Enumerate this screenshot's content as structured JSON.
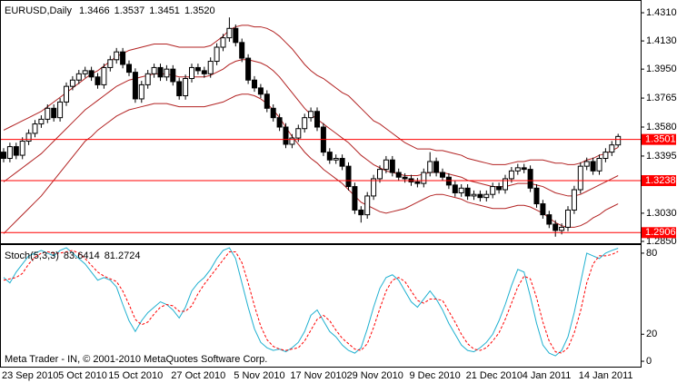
{
  "chart_data": [
    {
      "type": "candlestick",
      "title": "EURUSD,Daily",
      "header_values": [
        "1.3466",
        "1.3537",
        "1.3451",
        "1.3520"
      ],
      "categories": [
        "23 Sep 2010",
        null,
        null,
        null,
        null,
        null,
        null,
        null,
        null,
        "5 Oct 2010",
        null,
        null,
        null,
        null,
        null,
        null,
        null,
        "15 Oct 2010",
        null,
        null,
        null,
        null,
        null,
        null,
        null,
        null,
        null,
        "27 Oct 2010",
        null,
        null,
        null,
        null,
        null,
        null,
        null,
        null,
        null,
        "5 Nov 2010",
        null,
        null,
        null,
        null,
        null,
        null,
        null,
        null,
        "17 Nov 2010",
        null,
        null,
        null,
        null,
        null,
        null,
        null,
        null,
        "29 Nov 2010",
        null,
        null,
        null,
        null,
        null,
        null,
        null,
        null,
        null,
        "9 Dec 2010",
        null,
        null,
        null,
        null,
        null,
        null,
        null,
        null,
        "21 Dec 2010",
        null,
        null,
        null,
        null,
        null,
        null,
        null,
        null,
        "4 Jan 2011",
        null,
        null,
        null,
        null,
        null,
        null,
        null,
        null,
        "14 Jan 2011",
        null,
        null,
        null,
        null,
        null,
        null
      ],
      "open": [
        1.342,
        1.338,
        1.3455,
        1.34,
        1.349,
        1.354,
        1.36,
        1.363,
        1.37,
        1.364,
        1.374,
        1.384,
        1.388,
        1.392,
        1.394,
        1.39,
        1.385,
        1.396,
        1.401,
        1.406,
        1.398,
        1.393,
        1.376,
        1.385,
        1.392,
        1.396,
        1.39,
        1.395,
        1.387,
        1.378,
        1.389,
        1.396,
        1.394,
        1.392,
        1.4,
        1.409,
        1.415,
        1.421,
        1.412,
        1.402,
        1.388,
        1.383,
        1.379,
        1.37,
        1.364,
        1.358,
        1.347,
        1.351,
        1.357,
        1.364,
        1.368,
        1.358,
        1.342,
        1.337,
        1.338,
        1.333,
        1.32,
        1.305,
        1.302,
        1.314,
        1.325,
        1.331,
        1.337,
        1.329,
        1.326,
        1.325,
        1.323,
        1.322,
        1.329,
        1.336,
        1.329,
        1.326,
        1.321,
        1.316,
        1.319,
        1.314,
        1.315,
        1.313,
        1.315,
        1.32,
        1.318,
        1.325,
        1.33,
        1.332,
        1.331,
        1.319,
        1.309,
        1.302,
        1.296,
        1.292,
        1.294,
        1.305,
        1.318,
        1.333,
        1.336,
        1.33,
        1.338,
        1.342,
        1.3466
      ],
      "high": [
        1.3445,
        1.348,
        1.348,
        1.3515,
        1.3565,
        1.3625,
        1.3655,
        1.3725,
        1.3725,
        1.3765,
        1.3865,
        1.3905,
        1.3945,
        1.3965,
        1.3965,
        1.3925,
        1.3985,
        1.4035,
        1.4085,
        1.4085,
        1.4005,
        1.3955,
        1.3875,
        1.3945,
        1.3985,
        1.3985,
        1.3975,
        1.3975,
        1.3895,
        1.3915,
        1.3985,
        1.3985,
        1.3965,
        1.4025,
        1.4115,
        1.4175,
        1.428,
        1.4235,
        1.4145,
        1.4045,
        1.3905,
        1.3855,
        1.3815,
        1.3725,
        1.3665,
        1.3605,
        1.3535,
        1.3595,
        1.3665,
        1.3705,
        1.3705,
        1.3605,
        1.3445,
        1.3405,
        1.3405,
        1.3355,
        1.3225,
        1.3075,
        1.3165,
        1.3275,
        1.3335,
        1.3395,
        1.3395,
        1.3315,
        1.3285,
        1.3275,
        1.3255,
        1.3315,
        1.342,
        1.3385,
        1.3315,
        1.3285,
        1.3235,
        1.3215,
        1.3215,
        1.3175,
        1.3175,
        1.3175,
        1.3225,
        1.3225,
        1.3275,
        1.3325,
        1.3345,
        1.3345,
        1.3335,
        1.3215,
        1.3115,
        1.3045,
        1.2985,
        1.2965,
        1.3075,
        1.3205,
        1.3355,
        1.3385,
        1.3385,
        1.3405,
        1.3445,
        1.3491,
        1.3537
      ],
      "low": [
        1.3355,
        1.3355,
        1.3375,
        1.3375,
        1.3465,
        1.3515,
        1.3575,
        1.3605,
        1.3615,
        1.3615,
        1.3715,
        1.3815,
        1.3855,
        1.3895,
        1.3875,
        1.3825,
        1.3825,
        1.3935,
        1.3985,
        1.3955,
        1.3905,
        1.3735,
        1.3735,
        1.3825,
        1.3895,
        1.3875,
        1.3875,
        1.3845,
        1.3755,
        1.3755,
        1.3865,
        1.3915,
        1.3895,
        1.3895,
        1.3975,
        1.4065,
        1.4125,
        1.4095,
        1.3995,
        1.3855,
        1.3805,
        1.3765,
        1.3675,
        1.3615,
        1.3555,
        1.3445,
        1.3445,
        1.3485,
        1.3545,
        1.3615,
        1.3555,
        1.3395,
        1.3345,
        1.3345,
        1.3305,
        1.3175,
        1.3025,
        1.297,
        1.2995,
        1.3115,
        1.3225,
        1.3285,
        1.3265,
        1.3235,
        1.3225,
        1.3205,
        1.3195,
        1.3195,
        1.3265,
        1.3265,
        1.3235,
        1.3185,
        1.3135,
        1.3135,
        1.3115,
        1.3115,
        1.3105,
        1.3105,
        1.3125,
        1.3155,
        1.3155,
        1.3225,
        1.3275,
        1.3285,
        1.3165,
        1.3065,
        1.2995,
        1.2935,
        1.288,
        1.2895,
        1.2915,
        1.3025,
        1.3155,
        1.3305,
        1.3275,
        1.3275,
        1.3355,
        1.3395,
        1.3451
      ],
      "close": [
        1.338,
        1.3455,
        1.34,
        1.349,
        1.354,
        1.36,
        1.363,
        1.37,
        1.364,
        1.374,
        1.384,
        1.388,
        1.392,
        1.394,
        1.39,
        1.385,
        1.396,
        1.401,
        1.406,
        1.398,
        1.393,
        1.376,
        1.385,
        1.392,
        1.396,
        1.39,
        1.395,
        1.387,
        1.378,
        1.389,
        1.396,
        1.394,
        1.392,
        1.4,
        1.409,
        1.415,
        1.421,
        1.412,
        1.402,
        1.388,
        1.383,
        1.379,
        1.37,
        1.364,
        1.358,
        1.347,
        1.351,
        1.357,
        1.364,
        1.368,
        1.358,
        1.342,
        1.337,
        1.338,
        1.333,
        1.32,
        1.305,
        1.302,
        1.314,
        1.325,
        1.331,
        1.337,
        1.329,
        1.326,
        1.325,
        1.323,
        1.322,
        1.329,
        1.336,
        1.329,
        1.326,
        1.321,
        1.316,
        1.319,
        1.314,
        1.315,
        1.313,
        1.315,
        1.32,
        1.318,
        1.325,
        1.33,
        1.332,
        1.331,
        1.319,
        1.309,
        1.302,
        1.296,
        1.292,
        1.294,
        1.305,
        1.318,
        1.333,
        1.336,
        1.33,
        1.338,
        1.342,
        1.3466,
        1.352
      ],
      "up_color": "#ffffff",
      "down_color": "#000000",
      "candle_stroke": "#000000",
      "bands": [
        {
          "color": "#b22222",
          "values": [
            1.356,
            1.358,
            1.36,
            1.362,
            1.364,
            1.366,
            1.368,
            1.371,
            1.374,
            1.377,
            1.38,
            1.383,
            1.386,
            1.389,
            1.392,
            1.394,
            1.397,
            1.4,
            1.403,
            1.405,
            1.407,
            1.408,
            1.409,
            1.41,
            1.411,
            1.411,
            1.411,
            1.41,
            1.409,
            1.409,
            1.409,
            1.409,
            1.409,
            1.41,
            1.413,
            1.416,
            1.42,
            1.422,
            1.423,
            1.423,
            1.422,
            1.422,
            1.421,
            1.419,
            1.416,
            1.412,
            1.408,
            1.403,
            1.398,
            1.394,
            1.391,
            1.389,
            1.386,
            1.383,
            1.38,
            1.378,
            1.374,
            1.37,
            1.366,
            1.362,
            1.36,
            1.357,
            1.354,
            1.351,
            1.348,
            1.346,
            1.344,
            1.344,
            1.344,
            1.343,
            1.343,
            1.342,
            1.341,
            1.34,
            1.338,
            1.337,
            1.336,
            1.335,
            1.334,
            1.334,
            1.334,
            1.335,
            1.336,
            1.336,
            1.337,
            1.337,
            1.337,
            1.336,
            1.335,
            1.335,
            1.334,
            1.334,
            1.335,
            1.337,
            1.338,
            1.34,
            1.341,
            1.343,
            1.345
          ]
        },
        {
          "color": "#b22222",
          "values": [
            1.323,
            1.326,
            1.329,
            1.332,
            1.335,
            1.338,
            1.341,
            1.345,
            1.349,
            1.353,
            1.357,
            1.361,
            1.365,
            1.369,
            1.372,
            1.375,
            1.378,
            1.381,
            1.384,
            1.386,
            1.388,
            1.389,
            1.39,
            1.391,
            1.392,
            1.392,
            1.392,
            1.391,
            1.39,
            1.39,
            1.39,
            1.39,
            1.39,
            1.391,
            1.393,
            1.395,
            1.398,
            1.4,
            1.401,
            1.401,
            1.4,
            1.399,
            1.397,
            1.394,
            1.39,
            1.385,
            1.38,
            1.375,
            1.37,
            1.366,
            1.363,
            1.36,
            1.357,
            1.354,
            1.351,
            1.348,
            1.344,
            1.34,
            1.337,
            1.334,
            1.332,
            1.33,
            1.329,
            1.328,
            1.327,
            1.327,
            1.327,
            1.328,
            1.329,
            1.329,
            1.329,
            1.328,
            1.327,
            1.326,
            1.324,
            1.323,
            1.322,
            1.321,
            1.32,
            1.32,
            1.32,
            1.321,
            1.322,
            1.322,
            1.322,
            1.321,
            1.32,
            1.318,
            1.316,
            1.315,
            1.314,
            1.314,
            1.315,
            1.317,
            1.319,
            1.321,
            1.323,
            1.325,
            1.327
          ]
        },
        {
          "color": "#b22222",
          "values": [
            1.29,
            1.294,
            1.298,
            1.302,
            1.306,
            1.31,
            1.314,
            1.319,
            1.324,
            1.329,
            1.334,
            1.339,
            1.344,
            1.349,
            1.352,
            1.356,
            1.359,
            1.362,
            1.365,
            1.367,
            1.369,
            1.37,
            1.371,
            1.372,
            1.373,
            1.373,
            1.373,
            1.372,
            1.371,
            1.371,
            1.371,
            1.371,
            1.371,
            1.372,
            1.373,
            1.374,
            1.376,
            1.378,
            1.379,
            1.379,
            1.378,
            1.376,
            1.373,
            1.369,
            1.364,
            1.358,
            1.352,
            1.347,
            1.342,
            1.338,
            1.335,
            1.331,
            1.328,
            1.325,
            1.322,
            1.318,
            1.314,
            1.31,
            1.308,
            1.306,
            1.304,
            1.303,
            1.304,
            1.305,
            1.306,
            1.308,
            1.31,
            1.312,
            1.314,
            1.315,
            1.315,
            1.314,
            1.313,
            1.312,
            1.31,
            1.309,
            1.308,
            1.307,
            1.306,
            1.306,
            1.306,
            1.307,
            1.308,
            1.308,
            1.307,
            1.305,
            1.303,
            1.3,
            1.297,
            1.295,
            1.294,
            1.294,
            1.295,
            1.297,
            1.3,
            1.302,
            1.305,
            1.307,
            1.309
          ]
        }
      ],
      "levels": [
        {
          "value": 1.3501,
          "label": "1.3501"
        },
        {
          "value": 1.3238,
          "label": "1.3238"
        },
        {
          "value": 1.2906,
          "label": "1.2906"
        }
      ],
      "level_color": "#ff0000",
      "ylim": [
        1.2844,
        1.4374
      ],
      "yticks": [
        {
          "value": 1.431,
          "label": "1.4310"
        },
        {
          "value": 1.413,
          "label": "1.4130"
        },
        {
          "value": 1.395,
          "label": "1.3950"
        },
        {
          "value": 1.3765,
          "label": "1.3765"
        },
        {
          "value": 1.358,
          "label": "1.3580"
        },
        {
          "value": 1.3395,
          "label": "1.3395"
        },
        {
          "value": 1.303,
          "label": "1.3030"
        },
        {
          "value": 1.285,
          "label": "1.2850"
        }
      ]
    },
    {
      "type": "line",
      "title": "Stoch(5,3,3)",
      "series": [
        {
          "color": "#1fb0d0",
          "dash": false,
          "values": [
            62,
            58,
            66,
            72,
            78,
            80,
            82,
            80,
            78,
            82,
            84,
            80,
            76,
            72,
            66,
            60,
            62,
            60,
            55,
            42,
            30,
            22,
            30,
            36,
            40,
            44,
            42,
            38,
            32,
            40,
            52,
            58,
            62,
            68,
            76,
            82,
            84,
            76,
            58,
            40,
            24,
            14,
            10,
            8,
            9,
            7,
            10,
            14,
            22,
            34,
            38,
            30,
            22,
            18,
            12,
            8,
            6,
            10,
            24,
            40,
            54,
            62,
            64,
            60,
            52,
            44,
            40,
            46,
            52,
            46,
            38,
            28,
            20,
            12,
            8,
            7,
            10,
            14,
            20,
            30,
            42,
            56,
            68,
            66,
            48,
            28,
            12,
            6,
            4,
            8,
            18,
            36,
            58,
            80,
            78,
            76,
            80,
            82,
            83.6414
          ]
        },
        {
          "color": "#ff0000",
          "dash": true,
          "values": [
            60,
            61,
            62,
            65,
            72,
            77,
            80,
            81,
            80,
            80,
            81,
            82,
            80,
            76,
            71,
            66,
            63,
            61,
            59,
            52,
            42,
            31,
            27,
            29,
            35,
            40,
            42,
            41,
            37,
            37,
            41,
            50,
            57,
            63,
            69,
            75,
            81,
            81,
            73,
            58,
            41,
            26,
            16,
            11,
            9,
            8,
            9,
            10,
            15,
            23,
            31,
            34,
            30,
            23,
            17,
            13,
            9,
            8,
            13,
            25,
            39,
            52,
            60,
            62,
            59,
            52,
            45,
            43,
            46,
            46,
            45,
            37,
            29,
            20,
            13,
            9,
            8,
            10,
            15,
            21,
            31,
            43,
            55,
            63,
            61,
            47,
            29,
            15,
            7,
            6,
            10,
            21,
            37,
            58,
            72,
            78,
            78,
            79,
            81.2724
          ]
        }
      ],
      "ylim": [
        -4,
        86
      ],
      "yticks": [
        80,
        20,
        0
      ]
    }
  ],
  "footer": "Meta Trader - IN, © 2001-2010 MetaQuotes Software Corp."
}
